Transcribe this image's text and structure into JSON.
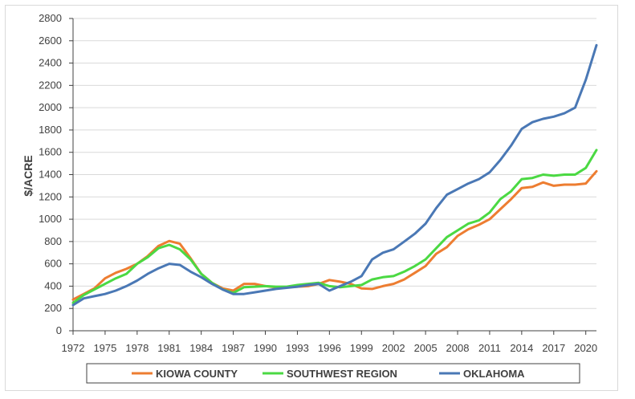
{
  "chart_data": {
    "type": "line",
    "title": "",
    "xlabel": "",
    "ylabel": "$/ACRE",
    "ylim": [
      0,
      2800
    ],
    "xlim": [
      1972,
      2021
    ],
    "yticks": [
      0,
      200,
      400,
      600,
      800,
      1000,
      1200,
      1400,
      1600,
      1800,
      2000,
      2200,
      2400,
      2600,
      2800
    ],
    "xticks": [
      1972,
      1975,
      1978,
      1981,
      1984,
      1987,
      1990,
      1993,
      1996,
      1999,
      2002,
      2005,
      2008,
      2011,
      2014,
      2017,
      2020
    ],
    "grid": "horizontal",
    "legend": "bottom",
    "x": [
      1972,
      1973,
      1974,
      1975,
      1976,
      1977,
      1978,
      1979,
      1980,
      1981,
      1982,
      1983,
      1984,
      1985,
      1986,
      1987,
      1988,
      1989,
      1990,
      1991,
      1992,
      1993,
      1994,
      1995,
      1996,
      1997,
      1998,
      1999,
      2000,
      2001,
      2002,
      2003,
      2004,
      2005,
      2006,
      2007,
      2008,
      2009,
      2010,
      2011,
      2012,
      2013,
      2014,
      2015,
      2016,
      2017,
      2018,
      2019,
      2020,
      2021
    ],
    "series": [
      {
        "name": "KIOWA COUNTY",
        "color": "#ed7d31",
        "values": [
          280,
          330,
          380,
          470,
          520,
          555,
          600,
          670,
          760,
          805,
          780,
          650,
          510,
          430,
          380,
          360,
          420,
          420,
          400,
          390,
          390,
          395,
          400,
          420,
          455,
          440,
          420,
          380,
          375,
          400,
          420,
          460,
          520,
          580,
          690,
          750,
          850,
          910,
          950,
          1000,
          1090,
          1180,
          1280,
          1290,
          1330,
          1300,
          1310,
          1310,
          1320,
          1430
        ]
      },
      {
        "name": "SOUTHWEST REGION",
        "color": "#4bd943",
        "values": [
          250,
          320,
          370,
          420,
          470,
          510,
          600,
          660,
          740,
          770,
          730,
          640,
          510,
          430,
          370,
          340,
          390,
          395,
          400,
          395,
          395,
          410,
          420,
          430,
          400,
          390,
          400,
          410,
          460,
          480,
          490,
          530,
          580,
          640,
          740,
          840,
          900,
          960,
          990,
          1060,
          1180,
          1250,
          1360,
          1370,
          1400,
          1390,
          1400,
          1400,
          1460,
          1620
        ]
      },
      {
        "name": "OKLAHOMA",
        "color": "#4a78b5",
        "values": [
          230,
          290,
          310,
          330,
          360,
          400,
          450,
          510,
          560,
          600,
          590,
          530,
          480,
          420,
          370,
          330,
          330,
          345,
          360,
          375,
          385,
          395,
          410,
          420,
          360,
          400,
          440,
          490,
          640,
          700,
          730,
          800,
          870,
          960,
          1100,
          1220,
          1270,
          1320,
          1360,
          1420,
          1530,
          1660,
          1810,
          1870,
          1900,
          1920,
          1950,
          2000,
          2250,
          2560
        ]
      }
    ]
  }
}
